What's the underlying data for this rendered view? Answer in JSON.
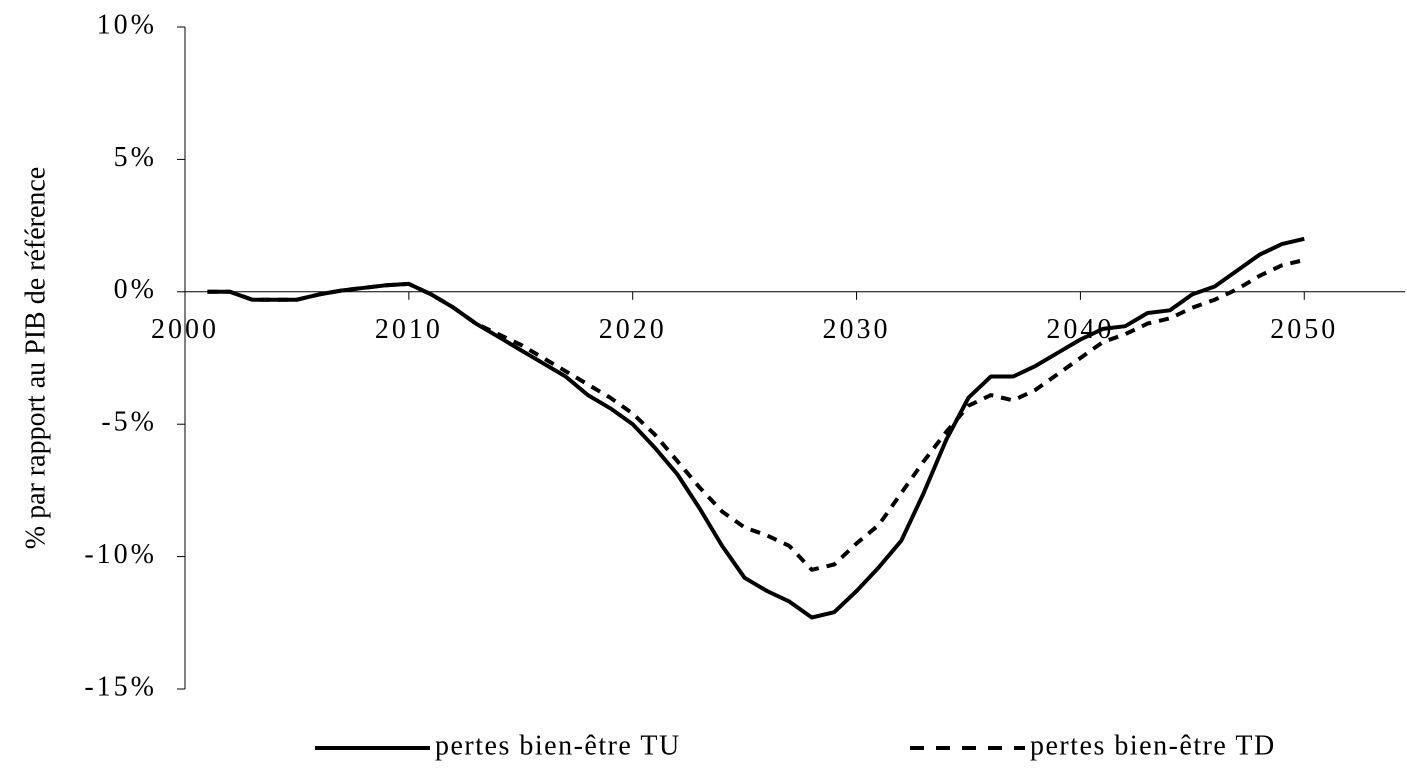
{
  "chart_data": {
    "type": "line",
    "y_label": "% par rapport au PIB de référence",
    "x": [
      2001,
      2002,
      2003,
      2004,
      2005,
      2006,
      2007,
      2008,
      2009,
      2010,
      2011,
      2012,
      2013,
      2014,
      2015,
      2016,
      2017,
      2018,
      2019,
      2020,
      2021,
      2022,
      2023,
      2024,
      2025,
      2026,
      2027,
      2028,
      2029,
      2030,
      2031,
      2032,
      2033,
      2034,
      2035,
      2036,
      2037,
      2038,
      2039,
      2040,
      2041,
      2042,
      2043,
      2044,
      2045,
      2046,
      2047,
      2048,
      2049,
      2050
    ],
    "series": [
      {
        "name": "pertes bien-être TU",
        "color": "#000000",
        "dash": false,
        "values": [
          0,
          0,
          -0.3,
          -0.3,
          -0.3,
          -0.1,
          0.05,
          0.15,
          0.25,
          0.3,
          -0.1,
          -0.6,
          -1.2,
          -1.7,
          -2.2,
          -2.7,
          -3.2,
          -3.9,
          -4.4,
          -5.0,
          -5.9,
          -6.9,
          -8.2,
          -9.6,
          -10.8,
          -11.3,
          -11.7,
          -12.3,
          -12.1,
          -11.3,
          -10.4,
          -9.4,
          -7.6,
          -5.6,
          -4.0,
          -3.2,
          -3.2,
          -2.8,
          -2.3,
          -1.8,
          -1.4,
          -1.3,
          -0.8,
          -0.7,
          -0.1,
          0.2,
          0.8,
          1.4,
          1.8,
          2.0
        ]
      },
      {
        "name": "pertes bien-être TD",
        "color": "#000000",
        "dash": true,
        "values": [
          0,
          0,
          -0.3,
          -0.3,
          -0.3,
          -0.1,
          0.05,
          0.15,
          0.25,
          0.3,
          -0.1,
          -0.6,
          -1.2,
          -1.6,
          -2.0,
          -2.5,
          -3.0,
          -3.5,
          -4.0,
          -4.6,
          -5.4,
          -6.4,
          -7.4,
          -8.3,
          -8.9,
          -9.2,
          -9.6,
          -10.5,
          -10.3,
          -9.5,
          -8.8,
          -7.6,
          -6.4,
          -5.3,
          -4.3,
          -3.9,
          -4.1,
          -3.7,
          -3.1,
          -2.5,
          -1.9,
          -1.6,
          -1.2,
          -1.0,
          -0.6,
          -0.3,
          0.1,
          0.6,
          1.0,
          1.2
        ]
      }
    ],
    "xlim": [
      2000,
      2054.5
    ],
    "xticks": [
      2000,
      2010,
      2020,
      2030,
      2040,
      2050
    ],
    "ylim": [
      -15,
      10
    ],
    "yticks": [
      {
        "value": -15,
        "label": "-15%"
      },
      {
        "value": -10,
        "label": "-10%"
      },
      {
        "value": -5,
        "label": "-5%"
      },
      {
        "value": 0,
        "label": "0%"
      },
      {
        "value": 5,
        "label": "5%"
      },
      {
        "value": 10,
        "label": "10%"
      }
    ],
    "grid": false,
    "legend": "bottom"
  }
}
